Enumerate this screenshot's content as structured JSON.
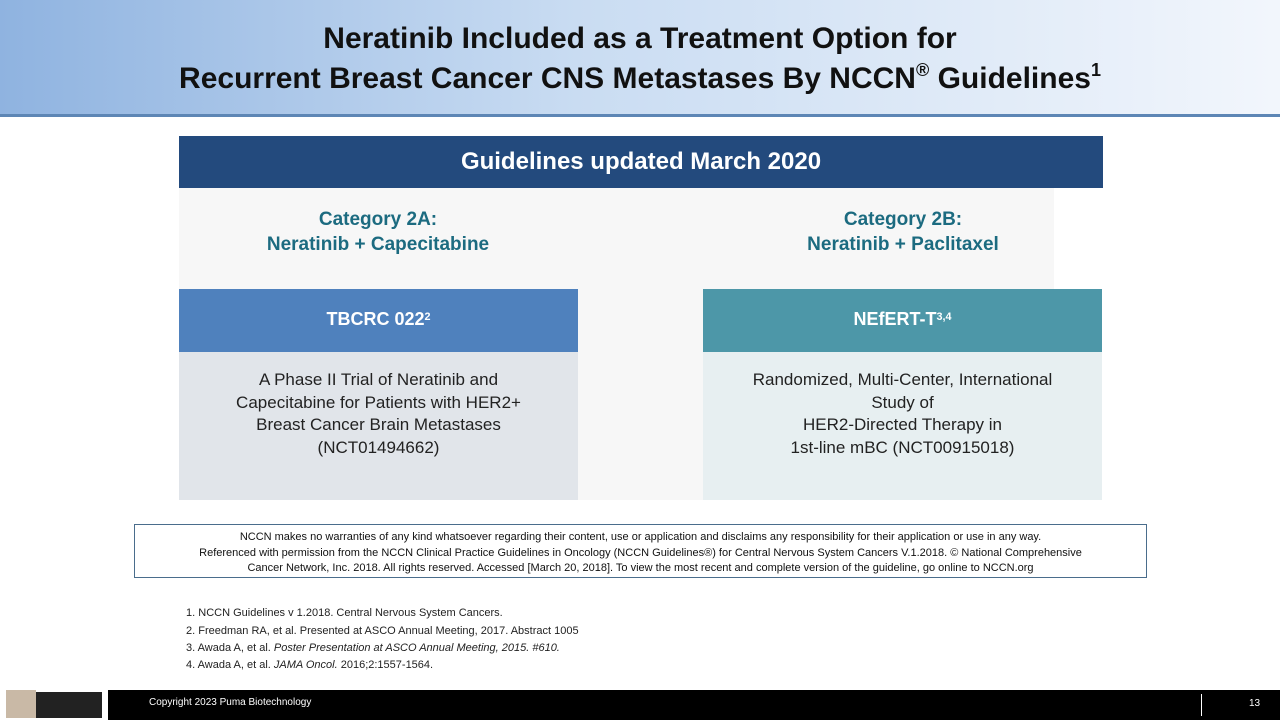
{
  "header": {
    "title_line1": "Neratinib Included as a Treatment Option for",
    "title_line2": "Recurrent Breast Cancer CNS Metastases By NCCN",
    "title_reg": "®",
    "title_line2_end": " Guidelines",
    "title_sup": "1"
  },
  "banner": "Guidelines updated March 2020",
  "columns": [
    {
      "category": "Category 2A:",
      "regimen": "Neratinib + Capecitabine",
      "trial": "TBCRC 022",
      "trial_sup": "2",
      "description": [
        "A Phase II Trial of Neratinib and",
        "Capecitabine for Patients with HER2+",
        "Breast Cancer Brain Metastases",
        "(NCT01494662)"
      ]
    },
    {
      "category": "Category 2B:",
      "regimen": "Neratinib + Paclitaxel",
      "trial": "NEfERT-T",
      "trial_sup": "3,4",
      "description": [
        "Randomized, Multi-Center, International",
        "Study of",
        "HER2-Directed Therapy in",
        "1st-line mBC  (NCT00915018)"
      ]
    }
  ],
  "disclaimer": [
    "NCCN makes no warranties of any kind whatsoever regarding their content, use or application and disclaims any responsibility for their application or use in any way.",
    "Referenced with permission from the NCCN Clinical Practice Guidelines in Oncology (NCCN Guidelines®) for Central Nervous System Cancers V.1.2018.  © National Comprehensive",
    "Cancer Network, Inc. 2018.  All rights reserved.  Accessed [March 20, 2018].  To view the most recent and complete version of the guideline, go online to NCCN.org"
  ],
  "footnotes": [
    {
      "number": "1.",
      "text": "NCCN Guidelines v 1.2018. Central Nervous System Cancers."
    },
    {
      "number": "2.",
      "text": "Freedman RA, et al. Presented at ASCO Annual Meeting, 2017. Abstract 1005"
    },
    {
      "number": "3.",
      "text": "Awada A,  et al. ",
      "italic": "Poster Presentation at ASCO Annual Meeting, 2015. #610."
    },
    {
      "number": "4.",
      "text": "Awada A,  et al. ",
      "italic": "JAMA Oncol.",
      "rest": " 2016;2:1557-1564."
    }
  ],
  "footer": {
    "copyright": "Copyright  2023 Puma  Biotechnology",
    "page": "13"
  }
}
